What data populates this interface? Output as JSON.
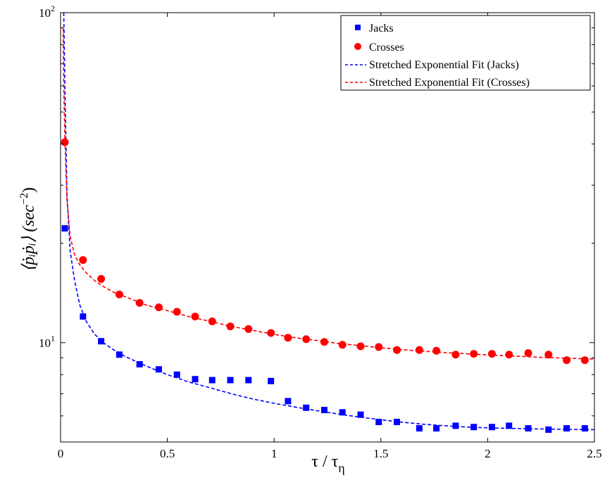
{
  "chart_data": {
    "type": "scatter",
    "title": "",
    "xlabel": {
      "main": "τ / τ",
      "subscript": "η"
    },
    "ylabel": {
      "main": "⟨ṗᵢṗᵢ⟩  (sec",
      "superscript": "−2",
      "close": ")"
    },
    "xlim": [
      0,
      2.5
    ],
    "ylim": [
      5,
      100
    ],
    "yscale": "log",
    "grid": false,
    "legend_position": "top-right",
    "x_ticks": [
      0,
      0.5,
      1,
      1.5,
      2,
      2.5
    ],
    "x_tick_labels": [
      "0",
      "0.5",
      "1",
      "1.5",
      "2",
      "2.5"
    ],
    "y_ticks": [
      10,
      100
    ],
    "y_tick_labels": [
      {
        "base": "10",
        "exp": "1"
      },
      {
        "base": "10",
        "exp": "2"
      }
    ],
    "series": [
      {
        "name": "Jacks",
        "kind": "scatter",
        "marker": "square",
        "color": "#0000ff",
        "x": [
          0.02,
          0.105,
          0.19,
          0.275,
          0.37,
          0.46,
          0.545,
          0.63,
          0.71,
          0.795,
          0.88,
          0.985,
          1.065,
          1.15,
          1.235,
          1.32,
          1.405,
          1.49,
          1.575,
          1.68,
          1.76,
          1.85,
          1.935,
          2.02,
          2.1,
          2.19,
          2.285,
          2.37,
          2.455
        ],
        "y": [
          22.2,
          12.0,
          10.1,
          9.2,
          8.6,
          8.3,
          8.0,
          7.75,
          7.7,
          7.7,
          7.7,
          7.65,
          6.65,
          6.35,
          6.25,
          6.15,
          6.05,
          5.75,
          5.75,
          5.5,
          5.5,
          5.6,
          5.55,
          5.55,
          5.6,
          5.5,
          5.45,
          5.5,
          5.5
        ]
      },
      {
        "name": "Crosses",
        "kind": "scatter",
        "marker": "circle",
        "color": "#ff0000",
        "x": [
          0.02,
          0.105,
          0.19,
          0.275,
          0.37,
          0.46,
          0.545,
          0.63,
          0.71,
          0.795,
          0.88,
          0.985,
          1.065,
          1.15,
          1.235,
          1.32,
          1.405,
          1.49,
          1.575,
          1.68,
          1.76,
          1.85,
          1.935,
          2.02,
          2.1,
          2.19,
          2.285,
          2.37,
          2.455
        ],
        "y": [
          40.5,
          17.8,
          15.6,
          14.0,
          13.2,
          12.8,
          12.4,
          12.0,
          11.6,
          11.2,
          11.0,
          10.7,
          10.35,
          10.25,
          10.05,
          9.85,
          9.75,
          9.7,
          9.5,
          9.5,
          9.45,
          9.2,
          9.25,
          9.25,
          9.2,
          9.3,
          9.2,
          8.85,
          8.85
        ]
      },
      {
        "name": "Stretched Exponential Fit (Jacks)",
        "kind": "line",
        "dash": "dashed",
        "color": "#0000ff",
        "x": [
          0.015,
          0.02,
          0.03,
          0.045,
          0.065,
          0.09,
          0.12,
          0.16,
          0.2,
          0.25,
          0.3,
          0.4,
          0.5,
          0.6,
          0.7,
          0.8,
          0.9,
          1.0,
          1.1,
          1.2,
          1.3,
          1.4,
          1.5,
          1.6,
          1.7,
          1.8,
          1.9,
          2.0,
          2.1,
          2.2,
          2.3,
          2.4,
          2.5
        ],
        "y": [
          100,
          60,
          28,
          19,
          15.5,
          13.0,
          11.6,
          10.6,
          10.0,
          9.5,
          9.1,
          8.5,
          8.0,
          7.6,
          7.3,
          7.0,
          6.75,
          6.55,
          6.38,
          6.22,
          6.08,
          5.95,
          5.84,
          5.74,
          5.66,
          5.6,
          5.55,
          5.52,
          5.5,
          5.48,
          5.47,
          5.46,
          5.45
        ]
      },
      {
        "name": "Stretched Exponential Fit (Crosses)",
        "kind": "line",
        "dash": "dashed",
        "color": "#ff0000",
        "x": [
          0.012,
          0.015,
          0.02,
          0.03,
          0.045,
          0.065,
          0.09,
          0.12,
          0.16,
          0.2,
          0.25,
          0.3,
          0.4,
          0.5,
          0.6,
          0.7,
          0.8,
          0.9,
          1.0,
          1.1,
          1.2,
          1.3,
          1.4,
          1.5,
          1.6,
          1.7,
          1.8,
          1.9,
          2.0,
          2.1,
          2.2,
          2.3,
          2.4,
          2.5
        ],
        "y": [
          90,
          60,
          42,
          27,
          21,
          18.5,
          17.2,
          16.3,
          15.4,
          14.8,
          14.2,
          13.8,
          13.0,
          12.5,
          12.0,
          11.6,
          11.2,
          10.9,
          10.6,
          10.35,
          10.15,
          9.95,
          9.8,
          9.65,
          9.52,
          9.42,
          9.33,
          9.25,
          9.18,
          9.12,
          9.06,
          9.0,
          8.96,
          8.92
        ]
      }
    ]
  },
  "colors": {
    "jacks": "#0000ff",
    "crosses": "#ff0000",
    "axis": "#000000",
    "background": "#ffffff"
  }
}
